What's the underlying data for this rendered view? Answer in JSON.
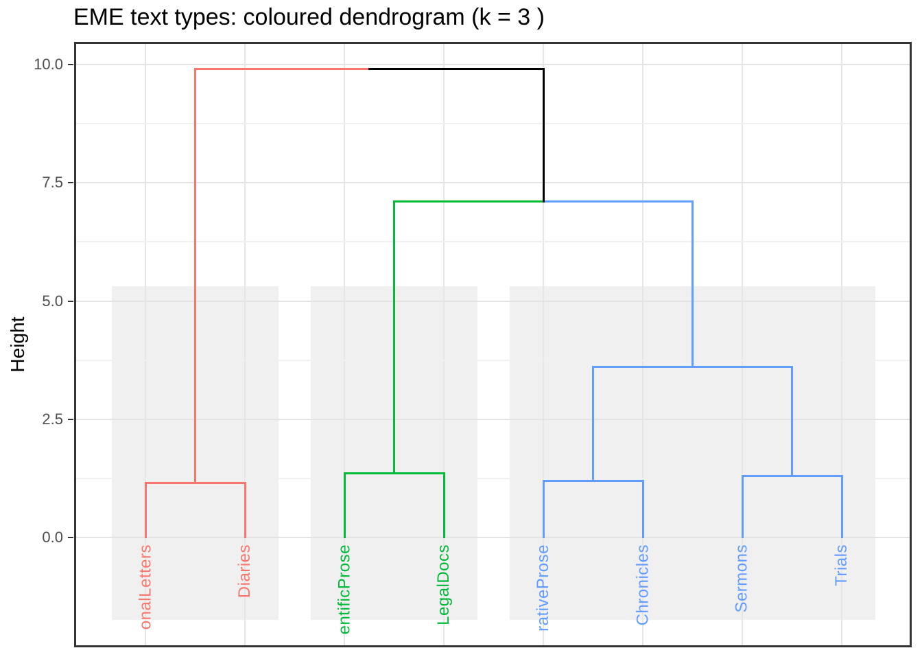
{
  "title": "EME text types: coloured dendrogram (k = 3 )",
  "y_axis": {
    "label": "Height",
    "tick_labels": [
      "10.0",
      "7.5",
      "5.0",
      "2.5",
      "0.0"
    ],
    "tick_values": [
      10,
      7.5,
      5,
      2.5,
      0
    ]
  },
  "colors": {
    "cluster_red": "#F8766D",
    "cluster_green": "#00BA38",
    "cluster_blue": "#619CFF",
    "link_black": "#000000",
    "panel_border": "#333333",
    "cluster_box_fill": "#f0f0f0",
    "gridline_major": "#e3e3e3",
    "gridline_minor": "#f0f0f0",
    "axis_text": "#4d4d4d"
  },
  "chart_data": {
    "type": "dendrogram",
    "title": "EME text types: coloured dendrogram (k = 3 )",
    "ylabel": "Height",
    "k": 3,
    "grid": "on",
    "ylim": [
      -2.3,
      10.5
    ],
    "yticks_major": [
      0,
      2.5,
      5,
      7.5,
      10
    ],
    "yticks_minor": [
      1.25,
      3.75,
      6.25,
      8.75
    ],
    "leaf_labels": [
      "onalLetters",
      "Diaries",
      "entificProse",
      "LegalDocs",
      "rativeProse",
      "Chronicles",
      "Sermons",
      "Trials"
    ],
    "leaf_clusters": [
      1,
      1,
      2,
      2,
      3,
      3,
      3,
      3
    ],
    "cluster_colors": {
      "1": "#F8766D",
      "2": "#00BA38",
      "3": "#619CFF"
    },
    "link_color": "#000000",
    "cluster_boxes": {
      "height_top": 5.31,
      "height_bottom": -1.74,
      "x_pad_units": 0.34
    },
    "merges": [
      {
        "members": [
          "onalLetters",
          "Diaries"
        ],
        "height": 1.15,
        "branch": "red"
      },
      {
        "members": [
          "entificProse",
          "LegalDocs"
        ],
        "height": 1.35,
        "branch": "green"
      },
      {
        "members": [
          "rativeProse",
          "Chronicles"
        ],
        "height": 1.2,
        "branch": "blue"
      },
      {
        "members": [
          "Sermons",
          "Trials"
        ],
        "height": 1.3,
        "branch": "blue"
      },
      {
        "members": [
          "rativeProse",
          "Chronicles",
          "Sermons",
          "Trials"
        ],
        "height": 3.6,
        "branch": "blue"
      },
      {
        "members": [
          "entificProse",
          "LegalDocs",
          "rativeProse",
          "Chronicles",
          "Sermons",
          "Trials"
        ],
        "height": 7.1,
        "branch": "black"
      },
      {
        "members": [
          "onalLetters",
          "Diaries",
          "entificProse",
          "LegalDocs",
          "rativeProse",
          "Chronicles",
          "Sermons",
          "Trials"
        ],
        "height": 9.9,
        "branch": "black"
      }
    ],
    "tree": {
      "h": 9.9,
      "left": {
        "h": 1.15,
        "left": {
          "leaf": 0
        },
        "right": {
          "leaf": 1
        }
      },
      "right": {
        "h": 7.1,
        "left": {
          "h": 1.35,
          "left": {
            "leaf": 2
          },
          "right": {
            "leaf": 3
          }
        },
        "right": {
          "h": 3.6,
          "left": {
            "h": 1.2,
            "left": {
              "leaf": 4
            },
            "right": {
              "leaf": 5
            }
          },
          "right": {
            "h": 1.3,
            "left": {
              "leaf": 6
            },
            "right": {
              "leaf": 7
            }
          }
        }
      }
    }
  }
}
